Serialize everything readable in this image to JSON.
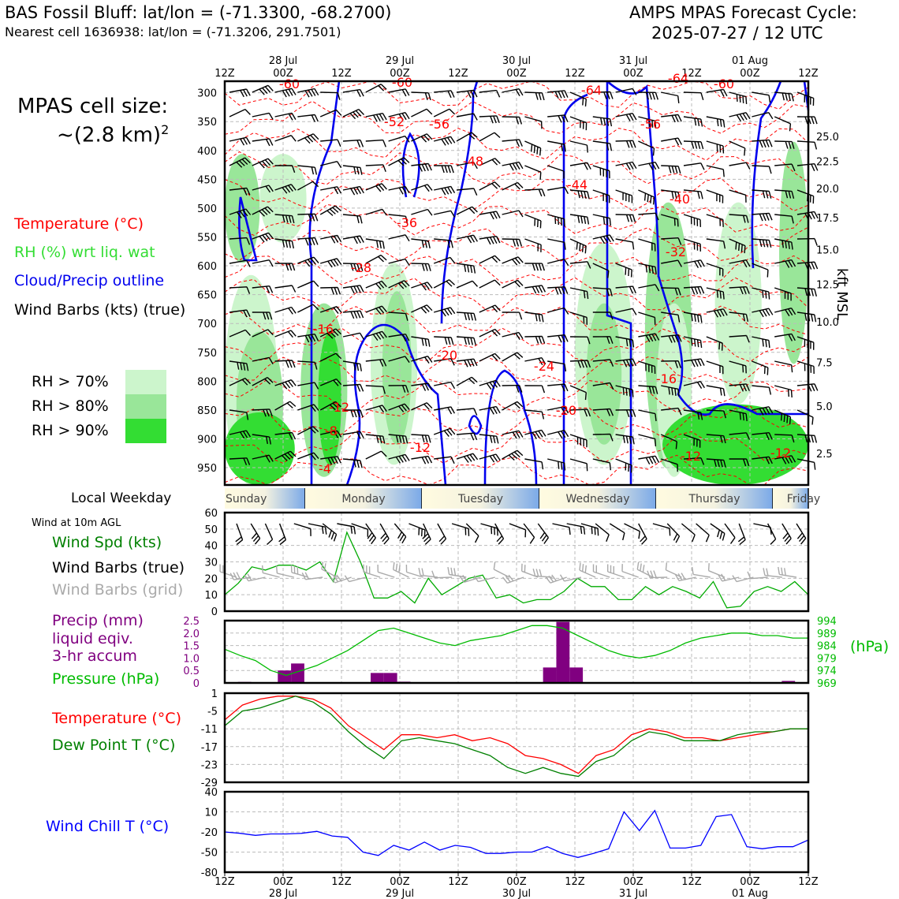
{
  "header": {
    "station_line": "BAS Fossil Bluff: lat/lon = (-71.3300, -68.2700)",
    "cell_line": "Nearest cell 1636938: lat/lon = (-71.3206, 291.7501)",
    "cycle_title": "AMPS MPAS Forecast Cycle:",
    "cycle_time": "2025-07-27 / 12 UTC"
  },
  "cell_size": {
    "label": "MPAS cell size:",
    "value": "~(2.8 km)",
    "exponent": "2"
  },
  "legend": {
    "temperature": "Temperature (°C)",
    "rh": "RH (%) wrt liq. wat",
    "cloud": "Cloud/Precip outline",
    "wind": "Wind Barbs (kts) (true)",
    "rh70": "RH > 70%",
    "rh80": "RH > 80%",
    "rh90": "RH > 90%"
  },
  "colors": {
    "temperature": "#ff0000",
    "rh_text": "#33cc33",
    "cloud": "#0000ee",
    "rh70": "#ccf5cc",
    "rh80": "#99e699",
    "rh90": "#33dd33",
    "precip": "#800080",
    "pressure": "#00aa00",
    "dewpoint": "#008000",
    "windchill": "#0000ff",
    "grid_barbs": "#aaaaaa"
  },
  "time_axis": {
    "ticks": [
      "12Z",
      "00Z",
      "12Z",
      "00Z",
      "12Z",
      "00Z",
      "12Z",
      "00Z",
      "12Z",
      "00Z",
      "12Z"
    ],
    "dates": [
      "",
      "28 Jul",
      "",
      "29 Jul",
      "",
      "30 Jul",
      "",
      "31 Jul",
      "",
      "01 Aug",
      ""
    ]
  },
  "weekday": {
    "label": "Local Weekday",
    "days": [
      "Sunday",
      "Monday",
      "Tuesday",
      "Wednesday",
      "Thursday",
      "Friday"
    ]
  },
  "panel_labels": {
    "wind10m": "Wind at 10m AGL",
    "wind_spd": "Wind Spd (kts)",
    "wind_barbs_true": "Wind Barbs (true)",
    "wind_barbs_grid": "Wind Barbs (grid)",
    "precip1": "Precip (mm)",
    "precip2": "liquid eqiv.",
    "precip3": "3-hr accum",
    "pressure": "Pressure (hPa)",
    "pressure_unit": "(hPa)",
    "temp": "Temperature (°C)",
    "dewpt": "Dew Point T (°C)",
    "windchill": "Wind Chill T (°C)",
    "kft": "kft MSL"
  },
  "chart_data": [
    {
      "type": "heatmap",
      "name": "time-height cross section",
      "y_pressure_ticks": [
        "300",
        "350",
        "400",
        "450",
        "500",
        "550",
        "600",
        "650",
        "700",
        "750",
        "800",
        "850",
        "900",
        "950"
      ],
      "y_kft_ticks": [
        "25.0",
        "22.5",
        "20.0",
        "17.5",
        "15.0",
        "12.5",
        "10.0",
        "7.5",
        "5.0",
        "2.5"
      ],
      "temp_labels": [
        "-60",
        "-60",
        "-64",
        "-60",
        "-64",
        "-52",
        "-56",
        "-56",
        "-48",
        "-44",
        "-40",
        "-36",
        "-32",
        "-28",
        "-16",
        "-20",
        "-24",
        "-20",
        "-16",
        "-12",
        "-12",
        "-12",
        "-8",
        "-12",
        "-4"
      ]
    },
    {
      "type": "line",
      "name": "wind speed 10m",
      "ylim": [
        0,
        60
      ],
      "yticks": [
        "0",
        "10",
        "20",
        "30",
        "40",
        "50",
        "60"
      ],
      "series": [
        {
          "name": "Wind Spd (kts)",
          "values": [
            10,
            17,
            27,
            25,
            28,
            28,
            25,
            30,
            18,
            48,
            30,
            8,
            8,
            12,
            5,
            20,
            10,
            15,
            20,
            22,
            8,
            10,
            5,
            7,
            7,
            12,
            20,
            15,
            15,
            7,
            7,
            15,
            10,
            15,
            12,
            8,
            18,
            2,
            3,
            12,
            15,
            12,
            18,
            10
          ]
        }
      ]
    },
    {
      "type": "bar",
      "name": "precip and pressure",
      "ylim": [
        0,
        2.5
      ],
      "yticks": [
        "0",
        "0.5",
        "1.0",
        "1.5",
        "2.0",
        "2.5"
      ],
      "pressure_yticks": [
        "969",
        "974",
        "979",
        "984",
        "989",
        "994"
      ],
      "precip_mm": [
        0,
        0.04,
        0,
        0,
        0.5,
        0.78,
        0,
        0,
        0,
        0,
        0,
        0.4,
        0.4,
        0.05,
        0,
        0,
        0,
        0,
        0,
        0,
        0,
        0,
        0,
        0,
        0.62,
        2.45,
        0.62,
        0,
        0,
        0,
        0,
        0,
        0,
        0,
        0,
        0,
        0,
        0,
        0,
        0,
        0,
        0,
        0.08,
        0
      ],
      "pressure_hpa": [
        982.5,
        980,
        978,
        974,
        972,
        974,
        976,
        979,
        982,
        986,
        990,
        991,
        989,
        987,
        985,
        984,
        986,
        987,
        988,
        990,
        992,
        992,
        991,
        988,
        985,
        982,
        980,
        979,
        980,
        982,
        985,
        987,
        988,
        989,
        989,
        988,
        988,
        987,
        987
      ]
    },
    {
      "type": "line",
      "name": "temperature and dew point",
      "ylim": [
        -29,
        1
      ],
      "yticks": [
        "1",
        "-5",
        "-11",
        "-17",
        "-23",
        "-29"
      ],
      "series": [
        {
          "name": "Temperature (°C)",
          "values": [
            -8,
            -3,
            -1,
            0,
            0,
            -1,
            -4,
            -10,
            -14,
            -18,
            -13,
            -13,
            -14,
            -13,
            -15,
            -14,
            -16,
            -20,
            -21,
            -23,
            -26,
            -20,
            -18,
            -13,
            -11,
            -12,
            -14,
            -14,
            -15,
            -14,
            -13,
            -12,
            -11,
            -11
          ]
        },
        {
          "name": "Dew Point T (°C)",
          "values": [
            -10,
            -5,
            -4,
            -2,
            0,
            -2,
            -6,
            -12,
            -17,
            -21,
            -15,
            -14,
            -15,
            -16,
            -18,
            -20,
            -24,
            -26,
            -24,
            -26,
            -27,
            -22,
            -20,
            -15,
            -12,
            -13,
            -15,
            -15,
            -15,
            -13,
            -12,
            -12,
            -11,
            -11
          ]
        }
      ]
    },
    {
      "type": "line",
      "name": "wind chill",
      "ylim": [
        -80,
        40
      ],
      "yticks": [
        "40",
        "10",
        "-20",
        "-50",
        "-80"
      ],
      "series": [
        {
          "name": "Wind Chill T (°C)",
          "values": [
            -20,
            -22,
            -25,
            -23,
            -23,
            -22,
            -19,
            -26,
            -28,
            -50,
            -55,
            -40,
            -47,
            -35,
            -47,
            -40,
            -43,
            -52,
            -52,
            -50,
            -50,
            -42,
            -52,
            -58,
            -52,
            -45,
            10,
            -18,
            12,
            -44,
            -44,
            -40,
            3,
            6,
            -42,
            -45,
            -42,
            -42,
            -32
          ]
        }
      ]
    }
  ]
}
